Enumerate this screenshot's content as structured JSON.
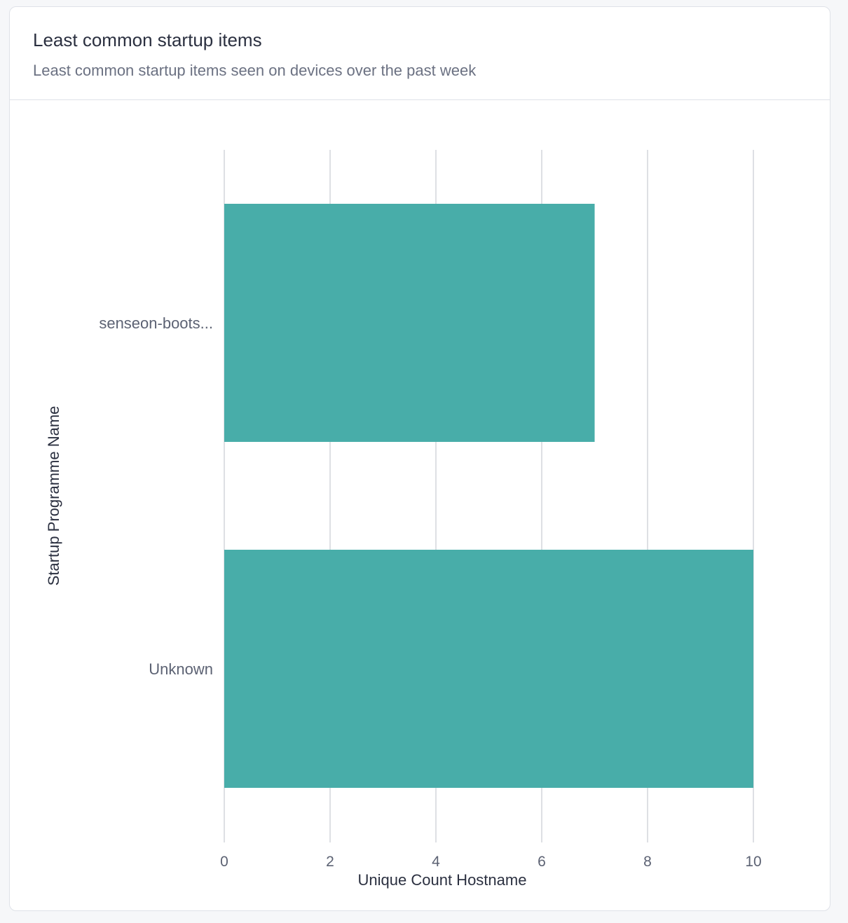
{
  "card": {
    "title": "Least common startup items",
    "subtitle": "Least common startup items seen on devices over the past week"
  },
  "colors": {
    "bar": "#48ada9",
    "grid": "#d4d6dc",
    "text": "#5c6273"
  },
  "chart_data": {
    "type": "bar",
    "orientation": "horizontal",
    "categories": [
      "senseon-boots...",
      "Unknown"
    ],
    "values": [
      7,
      10
    ],
    "xlabel": "Unique Count Hostname",
    "ylabel": "Startup Programme Name",
    "xlim": [
      0,
      10
    ],
    "xticks": [
      0,
      2,
      4,
      6,
      8,
      10
    ],
    "grid": true,
    "legend": "none"
  }
}
